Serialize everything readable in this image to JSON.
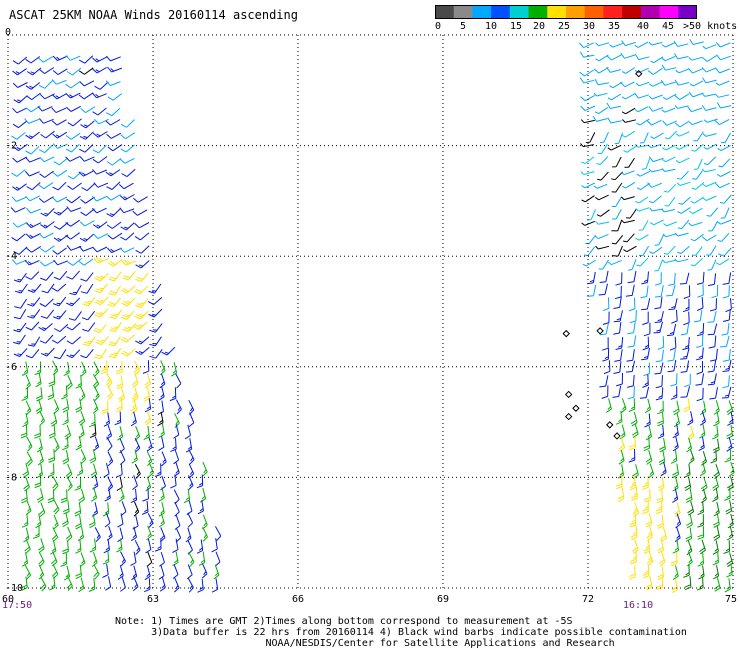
{
  "title": "ASCAT 25KM NOAA Winds 20160114 ascending",
  "color_scale": {
    "colors": [
      "#4a4a4a",
      "#8a8a8a",
      "#00a8ff",
      "#0050ff",
      "#00d0d0",
      "#00b000",
      "#ffe000",
      "#ffa000",
      "#ff6000",
      "#ff2020",
      "#c00000",
      "#b000b0",
      "#ff00ff",
      "#7a00c8"
    ],
    "labels": [
      "0",
      "5",
      "10",
      "15",
      "20",
      "25",
      "30",
      "35",
      "40",
      "45",
      ">50 knots"
    ],
    "units": "knots"
  },
  "map": {
    "lon_range": [
      60,
      75
    ],
    "lat_range": [
      0,
      -10
    ],
    "lon_ticks": [
      "60",
      "63",
      "66",
      "69",
      "72",
      "75"
    ],
    "lat_ticks": [
      "0",
      "-2",
      "-4",
      "-6",
      "-8",
      "-10"
    ],
    "grid": "dotted"
  },
  "pass_times": {
    "left": "17:50",
    "right": "16:10"
  },
  "notes": {
    "line1": "Note: 1) Times are GMT 2)Times along bottom correspond to measurement at -5S",
    "line2": "3)Data buffer is 22 hrs from 20160114 4) Black wind barbs indicate possible contamination",
    "line3": "NOAA/NESDIS/Center for Satellite Applications and Research"
  }
}
